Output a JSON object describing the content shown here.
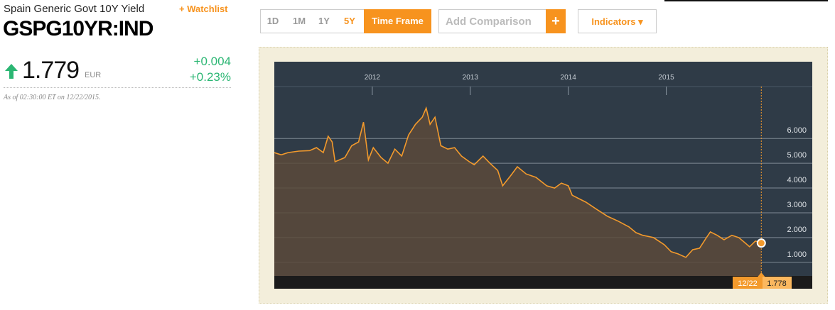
{
  "header": {
    "title": "Spain Generic Govt 10Y Yield",
    "watchlist": "+ Watchlist",
    "ticker": "GSPG10YR:IND"
  },
  "quote": {
    "price": "1.779",
    "currency": "EUR",
    "change": "+0.004",
    "change_pct": "+0.23%",
    "timestamp": "As of 02:30:00 ET on 12/22/2015."
  },
  "toolbar": {
    "ranges": [
      "1D",
      "1M",
      "1Y",
      "5Y"
    ],
    "time_frame": "Time Frame",
    "comparison_placeholder": "Add Comparison",
    "add": "+",
    "indicators": "Indicators ▾"
  },
  "chart_data": {
    "type": "line",
    "color": "#f39a2c",
    "background": "#2f3b47",
    "area": true,
    "grid": true,
    "x": [
      2011.0,
      2011.07,
      2011.14,
      2011.25,
      2011.36,
      2011.43,
      2011.5,
      2011.55,
      2011.59,
      2011.62,
      2011.72,
      2011.79,
      2011.86,
      2011.91,
      2011.96,
      2012.01,
      2012.09,
      2012.16,
      2012.23,
      2012.3,
      2012.37,
      2012.44,
      2012.51,
      2012.55,
      2012.59,
      2012.64,
      2012.7,
      2012.77,
      2012.84,
      2012.91,
      2012.99,
      2013.04,
      2013.13,
      2013.2,
      2013.28,
      2013.33,
      2013.41,
      2013.48,
      2013.57,
      2013.67,
      2013.78,
      2013.86,
      2013.93,
      2014.0,
      2014.04,
      2014.11,
      2014.18,
      2014.29,
      2014.4,
      2014.51,
      2014.62,
      2014.69,
      2014.76,
      2014.87,
      2014.98,
      2015.05,
      2015.12,
      2015.2,
      2015.27,
      2015.34,
      2015.41,
      2015.45,
      2015.52,
      2015.59,
      2015.67,
      2015.74,
      2015.8,
      2015.85,
      2015.91,
      2015.97
    ],
    "values": [
      5.43,
      5.34,
      5.43,
      5.49,
      5.51,
      5.63,
      5.43,
      6.09,
      5.86,
      5.06,
      5.23,
      5.71,
      5.86,
      6.66,
      5.14,
      5.63,
      5.23,
      5.0,
      5.57,
      5.29,
      6.14,
      6.57,
      6.86,
      7.23,
      6.57,
      6.86,
      5.71,
      5.57,
      5.63,
      5.29,
      5.06,
      4.94,
      5.29,
      5.0,
      4.71,
      4.09,
      4.49,
      4.86,
      4.57,
      4.43,
      4.09,
      4.0,
      4.2,
      4.09,
      3.71,
      3.57,
      3.43,
      3.14,
      2.86,
      2.66,
      2.43,
      2.2,
      2.09,
      2.0,
      1.71,
      1.43,
      1.34,
      1.2,
      1.51,
      1.57,
      2.0,
      2.23,
      2.09,
      1.91,
      2.09,
      2.0,
      1.8,
      1.63,
      1.86,
      1.778
    ],
    "xlim": [
      2011.0,
      2016.49
    ],
    "xticks": [
      2012,
      2013,
      2014,
      2015
    ],
    "ylim": [
      0.45,
      9.1
    ],
    "yticks": [
      {
        "value": 1,
        "label": "1.000"
      },
      {
        "value": 2,
        "label": "2.000"
      },
      {
        "value": 3,
        "label": "3.000"
      },
      {
        "value": 4,
        "label": "4.000"
      },
      {
        "value": 5,
        "label": "5.000"
      },
      {
        "value": 6,
        "label": "6.000"
      }
    ],
    "last_date": "12/22",
    "last_value": 1.778
  }
}
